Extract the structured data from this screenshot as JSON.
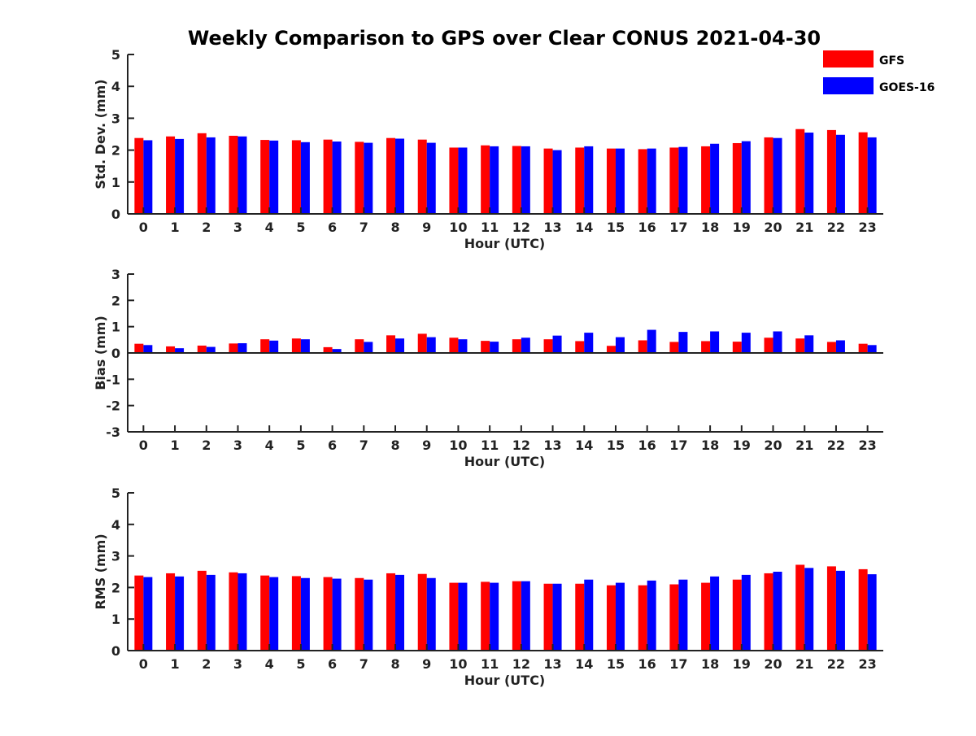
{
  "title": "Weekly Comparison to GPS over Clear CONUS 2021-04-30",
  "colors": {
    "gfs": "#ff0000",
    "goes": "#0000ff",
    "axis": "#222222"
  },
  "legend": [
    {
      "name": "GFS",
      "color": "#ff0000"
    },
    {
      "name": "GOES-16",
      "color": "#0000ff"
    }
  ],
  "chart_data": [
    {
      "type": "bar",
      "title": "Weekly Comparison to GPS over Clear CONUS 2021-04-30",
      "xlabel": "Hour (UTC)",
      "ylabel": "Std. Dev. (mm)",
      "ylim": [
        0,
        5
      ],
      "yticks": [
        "0",
        "1",
        "2",
        "3",
        "4",
        "5"
      ],
      "categories": [
        "0",
        "1",
        "2",
        "3",
        "4",
        "5",
        "6",
        "7",
        "8",
        "9",
        "10",
        "11",
        "12",
        "13",
        "14",
        "15",
        "16",
        "17",
        "18",
        "19",
        "20",
        "21",
        "22",
        "23"
      ],
      "series": [
        {
          "name": "GFS",
          "values": [
            2.38,
            2.43,
            2.53,
            2.45,
            2.32,
            2.31,
            2.33,
            2.26,
            2.38,
            2.33,
            2.08,
            2.15,
            2.13,
            2.05,
            2.08,
            2.05,
            2.03,
            2.08,
            2.12,
            2.22,
            2.4,
            2.66,
            2.63,
            2.56
          ]
        },
        {
          "name": "GOES-16",
          "values": [
            2.31,
            2.35,
            2.4,
            2.43,
            2.3,
            2.25,
            2.27,
            2.23,
            2.36,
            2.23,
            2.08,
            2.12,
            2.12,
            2.0,
            2.12,
            2.05,
            2.05,
            2.1,
            2.2,
            2.28,
            2.38,
            2.55,
            2.48,
            2.4
          ]
        }
      ]
    },
    {
      "type": "bar",
      "xlabel": "Hour (UTC)",
      "ylabel": "Bias (mm)",
      "ylim": [
        -3,
        3
      ],
      "yticks": [
        "-3",
        "-2",
        "-1",
        "0",
        "1",
        "2",
        "3"
      ],
      "categories": [
        "0",
        "1",
        "2",
        "3",
        "4",
        "5",
        "6",
        "7",
        "8",
        "9",
        "10",
        "11",
        "12",
        "13",
        "14",
        "15",
        "16",
        "17",
        "18",
        "19",
        "20",
        "21",
        "22",
        "23"
      ],
      "series": [
        {
          "name": "GFS",
          "values": [
            0.35,
            0.25,
            0.28,
            0.36,
            0.52,
            0.55,
            0.22,
            0.52,
            0.67,
            0.73,
            0.58,
            0.46,
            0.52,
            0.52,
            0.45,
            0.27,
            0.48,
            0.42,
            0.45,
            0.43,
            0.58,
            0.55,
            0.42,
            0.35
          ]
        },
        {
          "name": "GOES-16",
          "values": [
            0.3,
            0.18,
            0.23,
            0.37,
            0.47,
            0.52,
            0.15,
            0.42,
            0.55,
            0.6,
            0.52,
            0.43,
            0.58,
            0.66,
            0.77,
            0.6,
            0.88,
            0.8,
            0.82,
            0.77,
            0.82,
            0.67,
            0.48,
            0.3
          ]
        }
      ]
    },
    {
      "type": "bar",
      "xlabel": "Hour (UTC)",
      "ylabel": "RMS (mm)",
      "ylim": [
        0,
        5
      ],
      "yticks": [
        "0",
        "1",
        "2",
        "3",
        "4",
        "5"
      ],
      "categories": [
        "0",
        "1",
        "2",
        "3",
        "4",
        "5",
        "6",
        "7",
        "8",
        "9",
        "10",
        "11",
        "12",
        "13",
        "14",
        "15",
        "16",
        "17",
        "18",
        "19",
        "20",
        "21",
        "22",
        "23"
      ],
      "series": [
        {
          "name": "GFS",
          "values": [
            2.38,
            2.45,
            2.53,
            2.48,
            2.38,
            2.36,
            2.33,
            2.3,
            2.45,
            2.43,
            2.15,
            2.18,
            2.2,
            2.12,
            2.12,
            2.07,
            2.07,
            2.1,
            2.15,
            2.25,
            2.45,
            2.72,
            2.67,
            2.58
          ]
        },
        {
          "name": "GOES-16",
          "values": [
            2.33,
            2.35,
            2.4,
            2.45,
            2.33,
            2.3,
            2.28,
            2.25,
            2.4,
            2.3,
            2.15,
            2.15,
            2.2,
            2.12,
            2.25,
            2.15,
            2.22,
            2.25,
            2.35,
            2.4,
            2.5,
            2.62,
            2.53,
            2.42
          ]
        }
      ]
    }
  ]
}
